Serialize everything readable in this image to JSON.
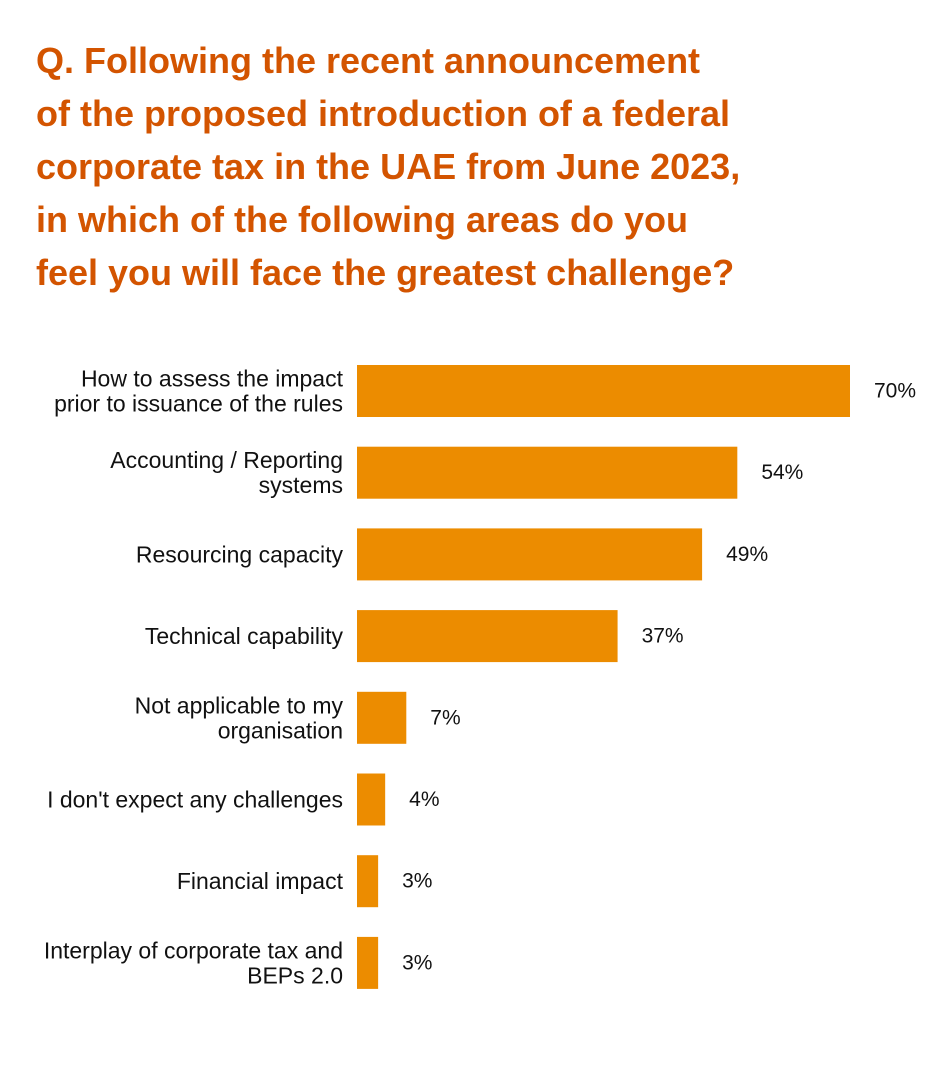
{
  "question": "Q. Following the recent announcement\nof the proposed introduction of a federal\ncorporate tax in the UAE from June 2023,\nin which of the following areas do you\nfeel you will face the greatest challenge?",
  "colors": {
    "title": "#d35400",
    "bar": "#ec8c00",
    "text": "#111111"
  },
  "chart_data": {
    "type": "bar",
    "orientation": "horizontal",
    "categories": [
      [
        "How to assess the impact",
        "prior to issuance of the rules"
      ],
      [
        "Accounting / Reporting",
        "systems"
      ],
      [
        "Resourcing capacity"
      ],
      [
        "Technical capability"
      ],
      [
        "Not applicable to my",
        "organisation"
      ],
      [
        "I don't expect any challenges"
      ],
      [
        "Financial impact"
      ],
      [
        "Interplay of corporate tax and",
        "BEPs 2.0"
      ]
    ],
    "values": [
      70,
      54,
      49,
      37,
      7,
      4,
      3,
      3
    ],
    "value_labels": [
      "70%",
      "54%",
      "49%",
      "37%",
      "7%",
      "4%",
      "3%",
      "3%"
    ],
    "unit": "%",
    "xlim": [
      0,
      70
    ],
    "grid": false,
    "legend": "none"
  }
}
